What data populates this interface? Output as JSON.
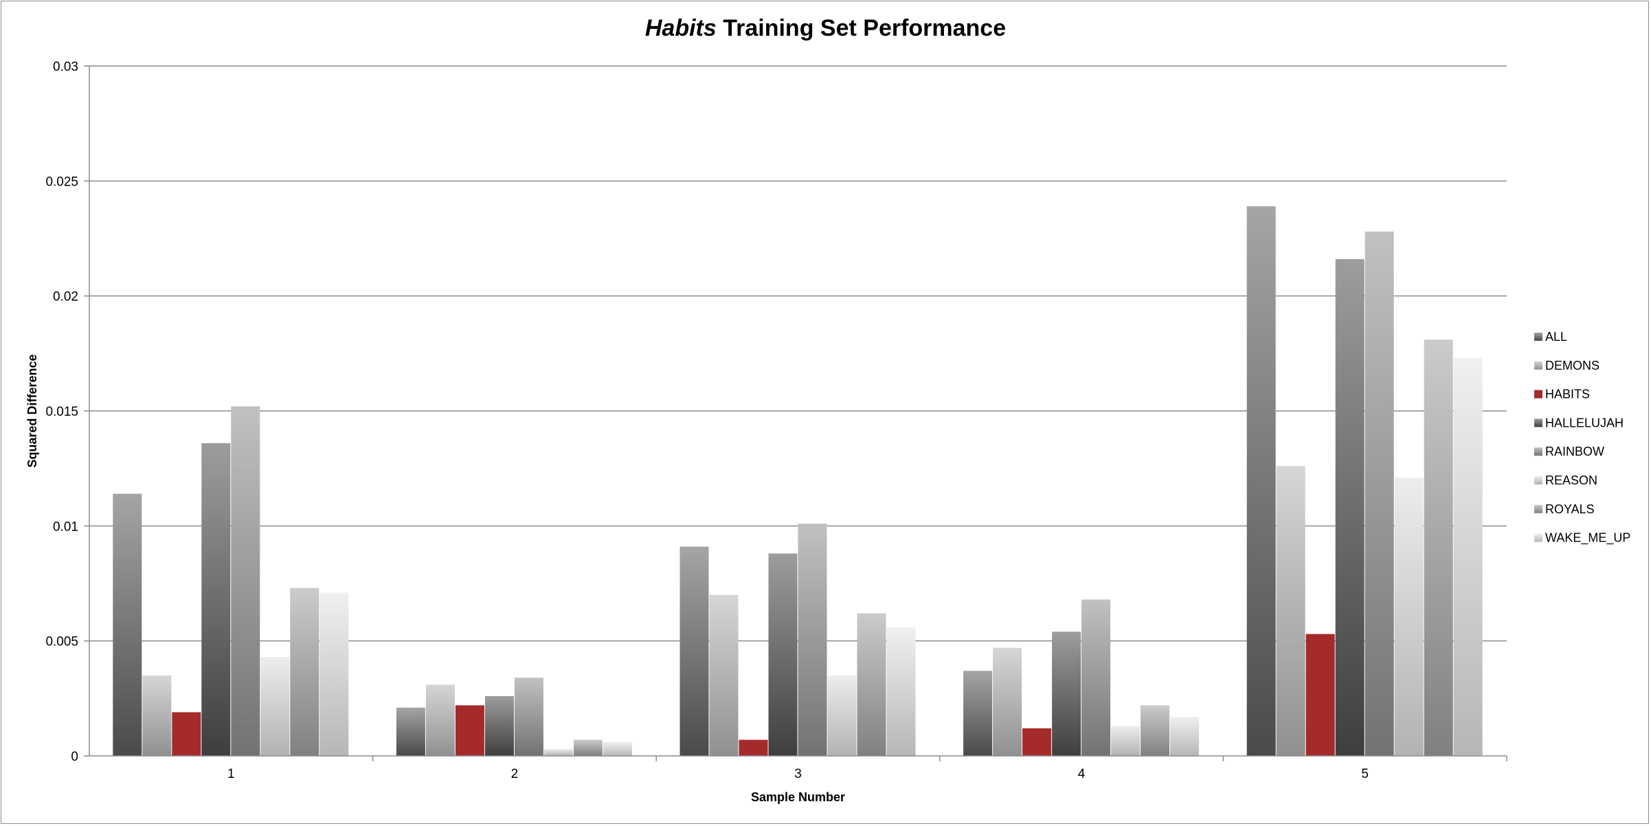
{
  "chart_data": {
    "type": "bar",
    "title_italic": "Habits",
    "title_rest": " Training Set Performance",
    "xlabel": "Sample Number",
    "ylabel": "Squared Difference",
    "ylim": [
      0,
      0.03
    ],
    "yticks": [
      "0",
      "0.005",
      "0.01",
      "0.015",
      "0.02",
      "0.025",
      "0.03"
    ],
    "categories": [
      "1",
      "2",
      "3",
      "4",
      "5"
    ],
    "grid": true,
    "legend_position": "right",
    "series": [
      {
        "name": "ALL",
        "color": "#5c5c5c",
        "values": [
          0.0114,
          0.0021,
          0.0091,
          0.0037,
          0.0239
        ]
      },
      {
        "name": "DEMONS",
        "color": "#b4b4b4",
        "values": [
          0.0035,
          0.0031,
          0.007,
          0.0047,
          0.0126
        ]
      },
      {
        "name": "HABITS",
        "color": "#a52a2a",
        "values": [
          0.0019,
          0.0022,
          0.0007,
          0.0012,
          0.0053
        ]
      },
      {
        "name": "HALLELUJAH",
        "color": "#4d4d4d",
        "values": [
          0.0136,
          0.0026,
          0.0088,
          0.0054,
          0.0216
        ]
      },
      {
        "name": "RAINBOW",
        "color": "#8f8f8f",
        "values": [
          0.0152,
          0.0034,
          0.0101,
          0.0068,
          0.0228
        ]
      },
      {
        "name": "REASON",
        "color": "#dedede",
        "values": [
          0.0043,
          0.0003,
          0.0035,
          0.0013,
          0.0121
        ]
      },
      {
        "name": "ROYALS",
        "color": "#a0a0a0",
        "values": [
          0.0073,
          0.0007,
          0.0062,
          0.0022,
          0.0181
        ]
      },
      {
        "name": "WAKE_ME_UP",
        "color": "#e4e4e4",
        "values": [
          0.0071,
          0.0006,
          0.0056,
          0.0017,
          0.0173
        ]
      }
    ]
  }
}
